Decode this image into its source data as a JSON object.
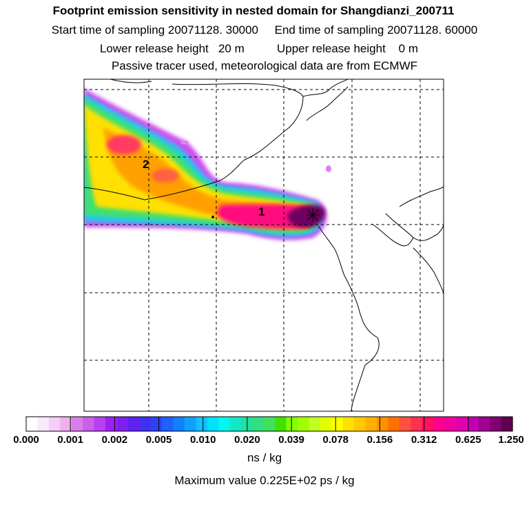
{
  "header": {
    "title": "Footprint emission sensitivity in nested domain for Shangdianzi_200711",
    "line1": "Start time of sampling 20071128. 30000     End time of sampling 20071128. 60000",
    "line2": "Lower release height   20 m          Upper release height    0 m",
    "line3": "Passive tracer used, meteorological data are from ECMWF"
  },
  "map": {
    "markers": [
      {
        "label": "1"
      },
      {
        "label": "2"
      }
    ]
  },
  "colorbar": {
    "tick_labels": [
      "0.000",
      "0.001",
      "0.002",
      "0.005",
      "0.010",
      "0.020",
      "0.039",
      "0.078",
      "0.156",
      "0.312",
      "0.625",
      "1.250"
    ],
    "colors": [
      "#ffffff",
      "#fbe8fb",
      "#f5cdf5",
      "#eeb0ee",
      "#d97ee8",
      "#c860e8",
      "#b840f0",
      "#a020f0",
      "#8020f0",
      "#6020f0",
      "#4030f0",
      "#3040f8",
      "#2060ff",
      "#1080ff",
      "#10a0ff",
      "#10c0ff",
      "#00e0ff",
      "#00f8f0",
      "#10e8c8",
      "#20e0a0",
      "#30e080",
      "#40e060",
      "#40e000",
      "#80ff00",
      "#a0ff00",
      "#c0ff20",
      "#e0ff00",
      "#ffff00",
      "#ffe000",
      "#ffc800",
      "#ffb000",
      "#ff9000",
      "#ff7000",
      "#ff5040",
      "#ff3050",
      "#ff1060",
      "#ff0090",
      "#f000a0",
      "#e000b0",
      "#c000b0",
      "#a00090",
      "#800070",
      "#600050"
    ],
    "units": "ns / kg",
    "max_value": "Maximum value  0.225E+02 ps / kg"
  }
}
